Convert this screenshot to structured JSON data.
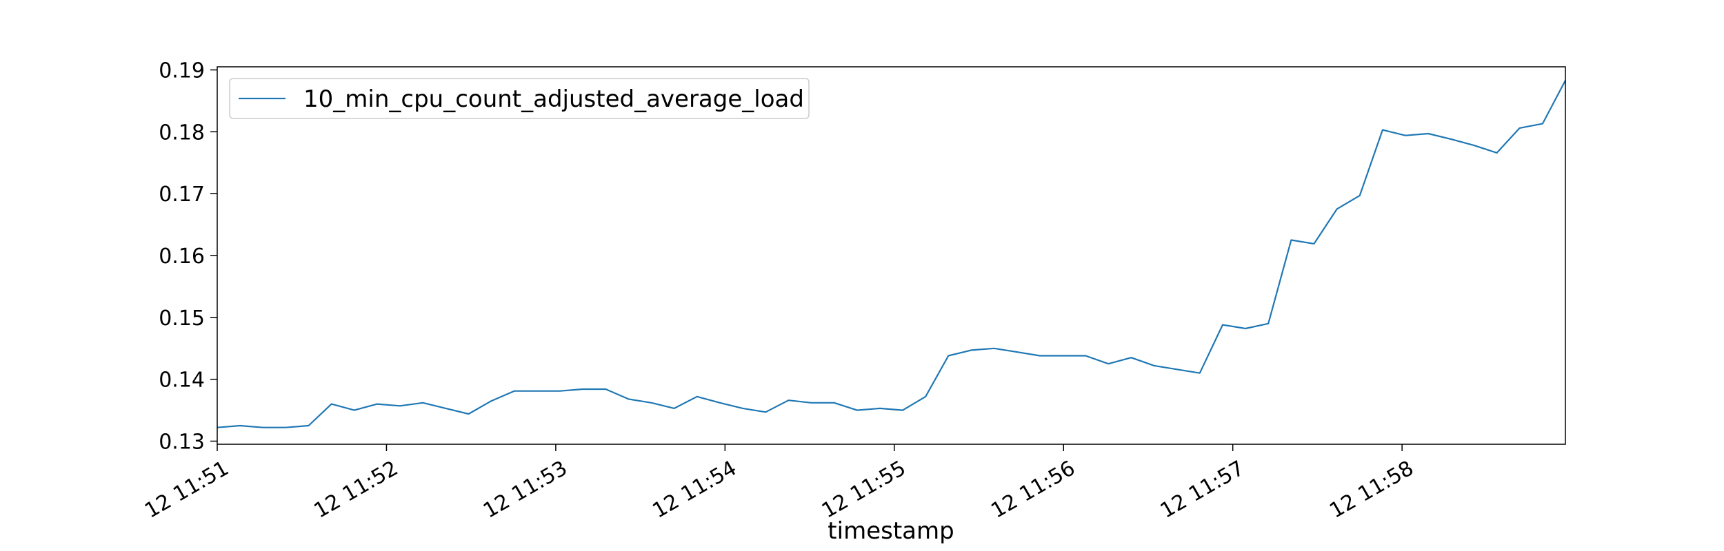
{
  "chart_data": {
    "type": "line",
    "title": "",
    "xlabel": "timestamp",
    "ylabel": "",
    "ylim": [
      0.1295,
      0.1905
    ],
    "yticks": [
      "0.13",
      "0.14",
      "0.15",
      "0.16",
      "0.17",
      "0.18",
      "0.19"
    ],
    "xticks": [
      "12 11:51",
      "12 11:52",
      "12 11:53",
      "12 11:54",
      "12 11:55",
      "12 11:56",
      "12 11:57",
      "12 11:58"
    ],
    "grid": false,
    "legend_position": "top-left",
    "series": [
      {
        "name": "10_min_cpu_count_adjusted_average_load",
        "color": "#1f77b4",
        "x_minutes_after_11_51": [
          0.0,
          0.135,
          0.27,
          0.405,
          0.54,
          0.675,
          0.81,
          0.945,
          1.08,
          1.215,
          1.35,
          1.485,
          1.62,
          1.755,
          1.89,
          2.025,
          2.16,
          2.295,
          2.43,
          2.565,
          2.7,
          2.835,
          2.97,
          3.105,
          3.24,
          3.375,
          3.51,
          3.645,
          3.78,
          3.915,
          4.05,
          4.185,
          4.32,
          4.455,
          4.59,
          4.725,
          4.86,
          4.995,
          5.13,
          5.265,
          5.4,
          5.535,
          5.67,
          5.805,
          5.94,
          6.075,
          6.21,
          6.345,
          6.48,
          6.615,
          6.75,
          6.885,
          7.02,
          7.155,
          7.29,
          7.425,
          7.56,
          7.695,
          7.83,
          7.965
        ],
        "values": [
          0.1322,
          0.1325,
          0.1322,
          0.1322,
          0.1325,
          0.136,
          0.135,
          0.136,
          0.1357,
          0.1362,
          0.1353,
          0.1344,
          0.1365,
          0.1381,
          0.1381,
          0.1381,
          0.1384,
          0.1384,
          0.1368,
          0.1362,
          0.1353,
          0.1372,
          0.1362,
          0.1353,
          0.1347,
          0.1366,
          0.1362,
          0.1362,
          0.135,
          0.1353,
          0.135,
          0.1372,
          0.1438,
          0.1447,
          0.145,
          0.1444,
          0.1438,
          0.1438,
          0.1438,
          0.1425,
          0.1435,
          0.1422,
          0.1416,
          0.141,
          0.1488,
          0.1482,
          0.149,
          0.1625,
          0.1619,
          0.1675,
          0.1697,
          0.1803,
          0.1794,
          0.1797,
          0.1788,
          0.1778,
          0.1766,
          0.1806,
          0.1813,
          0.1883
        ]
      }
    ]
  }
}
